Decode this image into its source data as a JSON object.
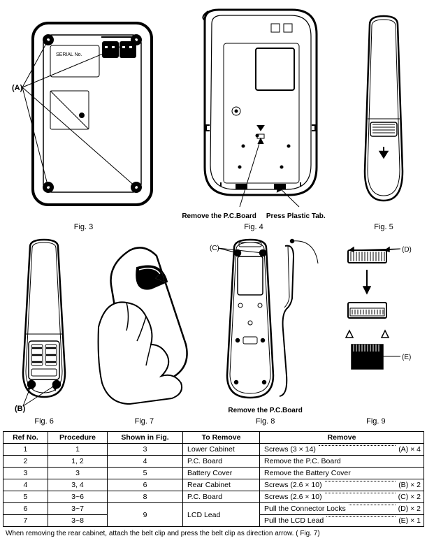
{
  "figures": {
    "fig3": {
      "caption": "Fig. 3",
      "label_a": "(A)",
      "serial_label": "SERIAL No."
    },
    "fig4": {
      "caption": "Fig. 4",
      "note_left": "Remove the P.C.Board",
      "note_right": "Press Plastic Tab."
    },
    "fig5": {
      "caption": "Fig. 5"
    },
    "fig6": {
      "caption": "Fig. 6",
      "label_b": "(B)"
    },
    "fig7": {
      "caption": "Fig. 7"
    },
    "fig8": {
      "caption": "Fig. 8",
      "note": "Remove the P.C.Board",
      "label_c": "(C)"
    },
    "fig9": {
      "caption": "Fig. 9",
      "label_d": "(D)",
      "label_e": "(E)"
    }
  },
  "table": {
    "headers": [
      "Ref No.",
      "Procedure",
      "Shown in Fig.",
      "To Remove",
      "Remove"
    ],
    "rows": [
      {
        "ref": "1",
        "proc": "1",
        "fig": "3",
        "to_remove": "Lower Cabinet",
        "remove_text": "Screws (3 × 14)",
        "remove_tag": "(A) × 4"
      },
      {
        "ref": "2",
        "proc": "1, 2",
        "fig": "4",
        "to_remove": "P.C. Board",
        "remove_text": "Remove the P.C. Board",
        "remove_tag": ""
      },
      {
        "ref": "3",
        "proc": "3",
        "fig": "5",
        "to_remove": "Battery Cover",
        "remove_text": "Remove the Battery Cover",
        "remove_tag": ""
      },
      {
        "ref": "4",
        "proc": "3, 4",
        "fig": "6",
        "to_remove": "Rear Cabinet",
        "remove_text": "Screws (2.6 × 10)",
        "remove_tag": "(B) × 2"
      },
      {
        "ref": "5",
        "proc": "3~6",
        "fig": "8",
        "to_remove": "P.C. Board",
        "remove_text": "Screws (2.6 × 10)",
        "remove_tag": "(C) × 2"
      },
      {
        "ref": "6",
        "proc": "3~7",
        "fig": "9",
        "to_remove": "LCD Lead",
        "remove_text": "Pull the Connector Locks",
        "remove_tag": "(D) × 2",
        "rowspan_fig": 2,
        "rowspan_rem": 2
      },
      {
        "ref": "7",
        "proc": "3~8",
        "fig": "",
        "to_remove": "",
        "remove_text": "Pull the LCD Lead",
        "remove_tag": "(E) × 1"
      }
    ]
  },
  "footnote": "When removing the rear cabinet, attach the belt clip and press the belt clip as direction arrow. ( Fig. 7)",
  "colors": {
    "stroke": "#000000",
    "bg": "#ffffff"
  }
}
